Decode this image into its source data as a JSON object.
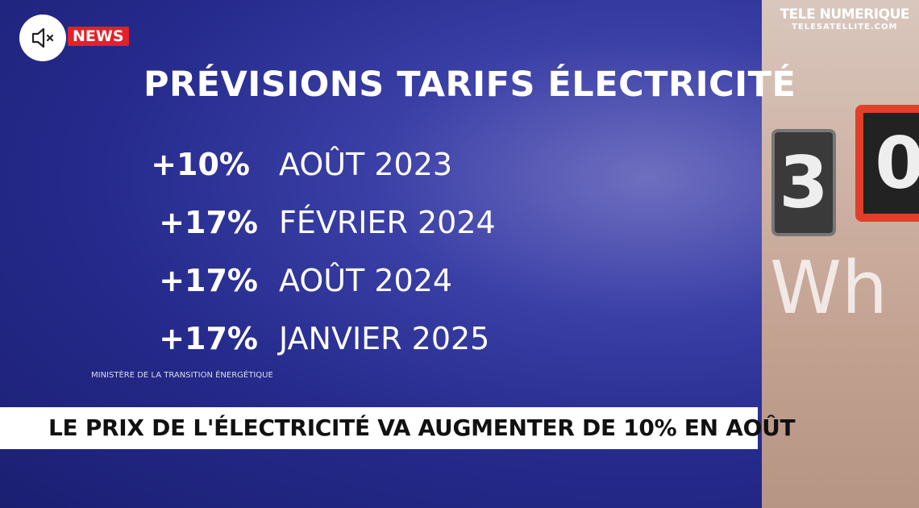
{
  "header": {
    "badge": "NEWS",
    "watermark": "TELE NUMERIQUE",
    "watermark_site": "TELESATELLITE.COM"
  },
  "title": "PRÉVISIONS TARIFS ÉLECTRICITÉ",
  "rows": [
    [
      "+10%",
      "AOÛT 2023"
    ],
    [
      "+17%",
      "FÉVRIER 2024"
    ],
    [
      "+17%",
      "AOÛT 2024"
    ],
    [
      "+17%",
      "JANVIER 2025"
    ]
  ],
  "source": "MINISTÈRE DE LA TRANSITION ÉNERGÉTIQUE",
  "banner": "LE PRIX DE L'ÉLECTRICITÉ VA AUGMENTER DE 10% EN AOÛT",
  "photo": {
    "digits": [
      "3",
      "0"
    ],
    "unit": "Wh"
  }
}
